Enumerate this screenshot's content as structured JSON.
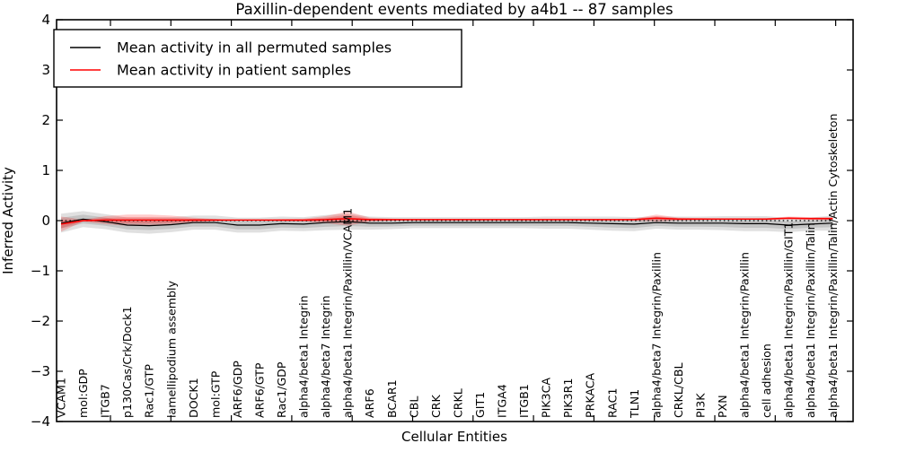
{
  "title": "Paxillin-dependent events mediated by a4b1 -- 87 samples",
  "chart_data": {
    "type": "line",
    "title": "Paxillin-dependent events mediated by a4b1 -- 87 samples",
    "xlabel": "Cellular Entities",
    "ylabel": "Inferred Activity",
    "ylim": [
      -4,
      4
    ],
    "yticks": [
      -4,
      -3,
      -2,
      -1,
      0,
      1,
      2,
      3,
      4
    ],
    "ytick_labels": [
      "−4",
      "−3",
      "−2",
      "−1",
      "0",
      "1",
      "2",
      "3",
      "4"
    ],
    "grid": false,
    "zero_line": true,
    "legend_position": "upper-left",
    "categories": [
      "VCAM1",
      "mol:GDP",
      "ITGB7",
      "p130Cas/Crk/Dock1",
      "Rac1/GTP",
      "lamellipodium assembly",
      "DOCK1",
      "mol:GTP",
      "ARF6/GDP",
      "ARF6/GTP",
      "Rac1/GDP",
      "alpha4/beta1 Integrin",
      "alpha4/beta7 Integrin",
      "alpha4/beta1 Integrin/Paxillin/VCAM1",
      "ARF6",
      "BCAR1",
      "CBL",
      "CRK",
      "CRKL",
      "GIT1",
      "ITGA4",
      "ITGB1",
      "PIK3CA",
      "PIK3R1",
      "PRKACA",
      "RAC1",
      "TLN1",
      "alpha4/beta7 Integrin/Paxillin",
      "CRKL/CBL",
      "PI3K",
      "PXN",
      "alpha4/beta1 Integrin/Paxillin",
      "cell adhesion",
      "alpha4/beta1 Integrin/Paxillin/GIT1",
      "alpha4/beta1 Integrin/Paxillin/Talin",
      "alpha4/beta1 Integrin/Paxillin/Talin/Actin Cytoskeleton"
    ],
    "series": [
      {
        "name": "Mean activity in all permuted samples",
        "color": "#000000",
        "band_fill": "rgba(0,0,0,0.12)",
        "values": [
          -0.05,
          0.03,
          -0.02,
          -0.09,
          -0.1,
          -0.08,
          -0.04,
          -0.04,
          -0.09,
          -0.09,
          -0.06,
          -0.07,
          -0.04,
          -0.02,
          -0.05,
          -0.05,
          -0.04,
          -0.04,
          -0.04,
          -0.04,
          -0.04,
          -0.04,
          -0.04,
          -0.04,
          -0.05,
          -0.06,
          -0.07,
          -0.04,
          -0.05,
          -0.05,
          -0.05,
          -0.06,
          -0.06,
          -0.09,
          -0.07,
          -0.05
        ],
        "band_halfwidth": [
          0.19,
          0.16,
          0.15,
          0.15,
          0.16,
          0.15,
          0.14,
          0.14,
          0.15,
          0.15,
          0.14,
          0.14,
          0.15,
          0.16,
          0.13,
          0.12,
          0.11,
          0.11,
          0.11,
          0.11,
          0.11,
          0.11,
          0.12,
          0.12,
          0.13,
          0.14,
          0.14,
          0.12,
          0.13,
          0.13,
          0.14,
          0.15,
          0.15,
          0.14,
          0.13,
          0.15
        ]
      },
      {
        "name": "Mean activity in patient samples",
        "color": "#ff0000",
        "band_fill": "rgba(255,0,0,0.20)",
        "values": [
          -0.07,
          0.0,
          0.01,
          0.01,
          0.01,
          0.01,
          0.01,
          0.01,
          0.01,
          0.01,
          0.01,
          0.01,
          0.02,
          0.04,
          0.02,
          0.02,
          0.02,
          0.02,
          0.02,
          0.02,
          0.02,
          0.02,
          0.02,
          0.02,
          0.02,
          0.02,
          0.02,
          0.05,
          0.03,
          0.03,
          0.03,
          0.03,
          0.03,
          0.05,
          0.04,
          0.04
        ],
        "band_halfwidth": [
          0.15,
          0.02,
          0.08,
          0.11,
          0.11,
          0.09,
          0.05,
          0.02,
          0.01,
          0.01,
          0.02,
          0.03,
          0.07,
          0.14,
          0.04,
          0.02,
          0.01,
          0.01,
          0.01,
          0.01,
          0.01,
          0.01,
          0.01,
          0.01,
          0.01,
          0.01,
          0.02,
          0.07,
          0.03,
          0.02,
          0.01,
          0.01,
          0.02,
          0.03,
          0.03,
          0.03
        ]
      }
    ],
    "legend": [
      {
        "label": "Mean activity in all permuted samples",
        "color": "#000000"
      },
      {
        "label": "Mean activity in patient samples",
        "color": "#ff0000"
      }
    ]
  }
}
